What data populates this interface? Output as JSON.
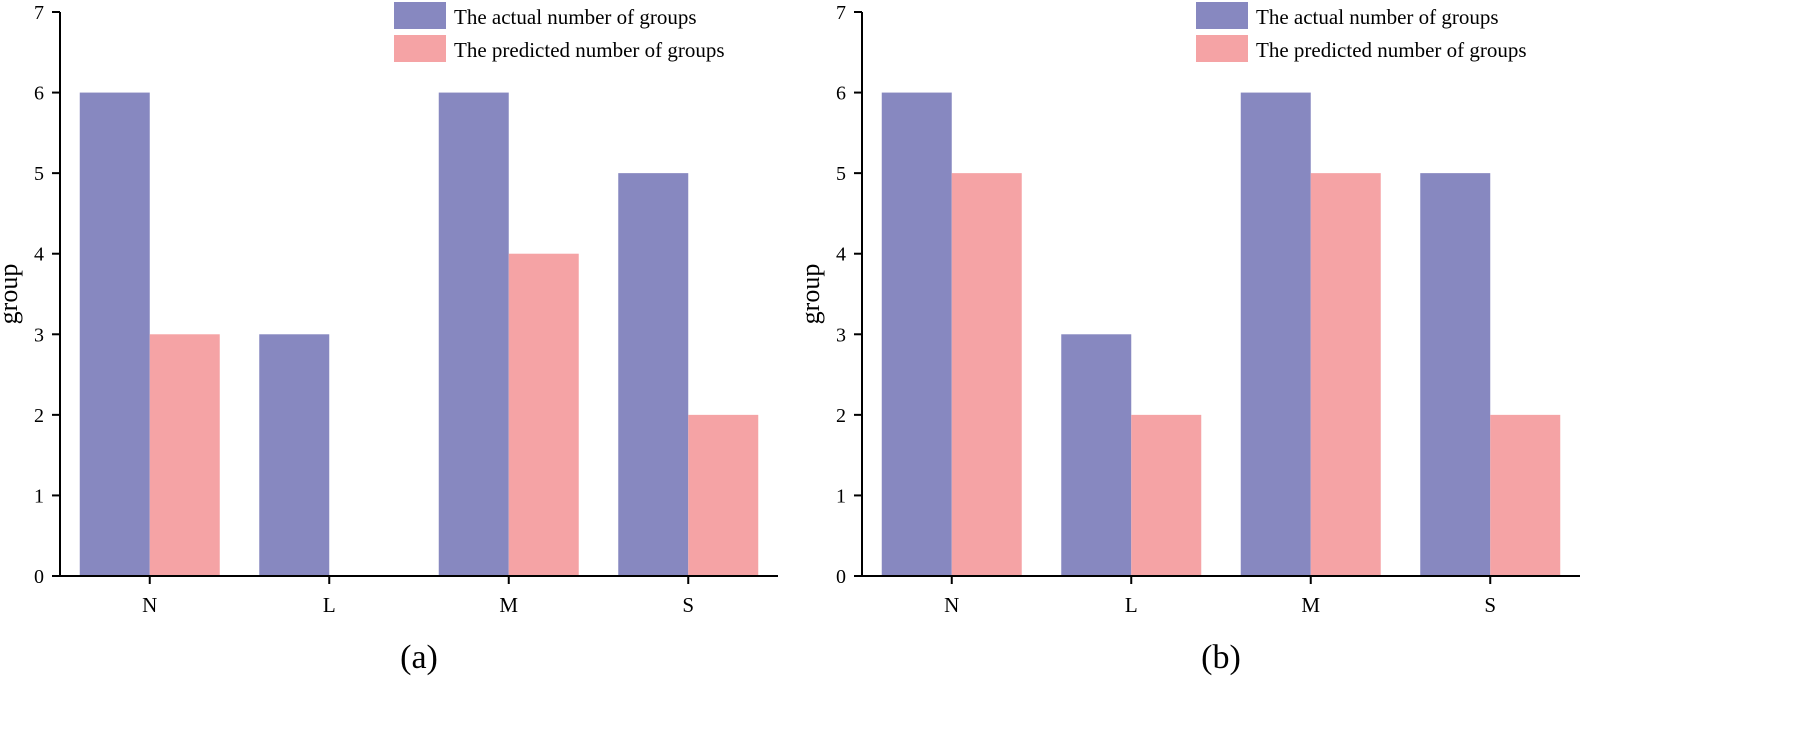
{
  "colors": {
    "actual": "#8788c0",
    "predicted": "#f5a3a5",
    "axis": "#000000"
  },
  "chart_data": [
    {
      "type": "bar",
      "caption": "(a)",
      "categories": [
        "N",
        "L",
        "M",
        "S"
      ],
      "series": [
        {
          "name": "The actual number of groups",
          "values": [
            6,
            3,
            6,
            5
          ]
        },
        {
          "name": "The predicted number of groups",
          "values": [
            3,
            0,
            4,
            2
          ]
        }
      ],
      "xlabel": "",
      "ylabel": "group",
      "ylim": [
        0,
        7
      ],
      "yticks": [
        "0",
        "1",
        "2",
        "3",
        "4",
        "5",
        "6",
        "7"
      ],
      "grid": false,
      "legend": "top-right"
    },
    {
      "type": "bar",
      "caption": "(b)",
      "categories": [
        "N",
        "L",
        "M",
        "S"
      ],
      "series": [
        {
          "name": "The actual number of groups",
          "values": [
            6,
            3,
            6,
            5
          ]
        },
        {
          "name": "The predicted number of groups",
          "values": [
            5,
            2,
            5,
            2
          ]
        }
      ],
      "xlabel": "",
      "ylabel": "group",
      "ylim": [
        0,
        7
      ],
      "yticks": [
        "0",
        "1",
        "2",
        "3",
        "4",
        "5",
        "6",
        "7"
      ],
      "grid": false,
      "legend": "top-right"
    }
  ]
}
